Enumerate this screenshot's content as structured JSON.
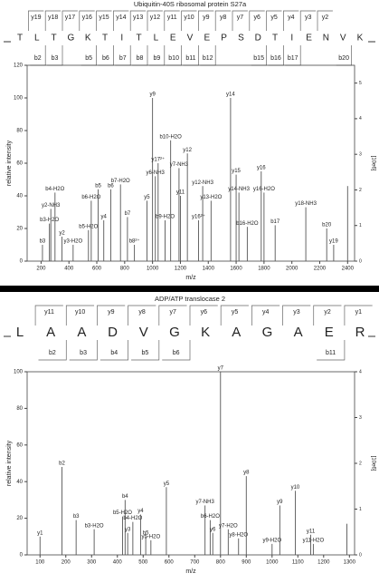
{
  "chart_data": [
    {
      "type": "spectrum",
      "title": "Ubiquitin-40S ribosomal protein S27a",
      "sequence": [
        "T",
        "L",
        "T",
        "G",
        "K",
        "T",
        "I",
        "T",
        "L",
        "E",
        "V",
        "E",
        "P",
        "S",
        "D",
        "T",
        "I",
        "E",
        "N",
        "V",
        "K"
      ],
      "y_ions": [
        "y19",
        "y18",
        "y17",
        "y16",
        "y15",
        "y14",
        "y13",
        "y12",
        "y11",
        "y10",
        "y9",
        "y8",
        "y7",
        "y6",
        "y5",
        "y4",
        "y3",
        "y2",
        null,
        null
      ],
      "b_ions": [
        null,
        "b2",
        "b3",
        null,
        "b5",
        "b6",
        "b7",
        "b8",
        "b9",
        "b10",
        "b11",
        "b12",
        null,
        null,
        "b15",
        "b16",
        "b17",
        null,
        null,
        "b20"
      ],
      "x_label": "m/z",
      "y_label": "relative intensity",
      "y2_label": "[10e6]",
      "xlim": [
        100,
        2450
      ],
      "xticks": [
        200,
        400,
        600,
        800,
        1000,
        1200,
        1400,
        1600,
        1800,
        2000,
        2200,
        2400
      ],
      "ylim": [
        0,
        120
      ],
      "yticks": [
        0,
        20,
        40,
        60,
        80,
        100,
        120
      ],
      "y2lim": [
        0,
        5.5
      ],
      "y2ticks": [
        0,
        1,
        2,
        3,
        4,
        5
      ],
      "color": "#555555",
      "peaks": {
        "x": [
          210,
          260,
          270,
          300,
          350,
          430,
          540,
          560,
          610,
          650,
          700,
          770,
          820,
          870,
          960,
          1000,
          1020,
          1040,
          1090,
          1130,
          1190,
          1200,
          1250,
          1330,
          1360,
          1420,
          1560,
          1600,
          1620,
          1680,
          1780,
          1800,
          1880,
          2100,
          2250,
          2300,
          2400
        ],
        "values": [
          10,
          23,
          32,
          42,
          15,
          10,
          19,
          37,
          44,
          25,
          44,
          47,
          27,
          10,
          37,
          100,
          52,
          60,
          25,
          74,
          57,
          40,
          66,
          25,
          46,
          37,
          100,
          53,
          42,
          21,
          55,
          42,
          22,
          33,
          20,
          10,
          46
        ],
        "labels": [
          "b3",
          "b3-H2O",
          "y2-NH3",
          "b4-H2O",
          "y2",
          "y3-H2O",
          "b5-H2O",
          "b6-H2O",
          "b5",
          "y4",
          "b6",
          "b7-H2O",
          "b7",
          "b8²⁺",
          "y5",
          "y9",
          "y6-NH3",
          "y17²⁺",
          "b9-H2O",
          "b10-H2O",
          "y7-NH3",
          "y11",
          "y12",
          "y16²⁺",
          "y12-NH3",
          "y13-H2O",
          "y14",
          "y15",
          "y14-NH3",
          "b16-H2O",
          "y16",
          "y16-H2O",
          "b17",
          "y18-NH3",
          "b20",
          "y19",
          null
        ]
      }
    },
    {
      "type": "spectrum",
      "title": "ADP/ATP translocase 2",
      "sequence": [
        "L",
        "A",
        "A",
        "D",
        "V",
        "G",
        "K",
        "A",
        "G",
        "A",
        "E",
        "R"
      ],
      "y_ions": [
        "y11",
        "y10",
        "y9",
        "y8",
        "y7",
        "y6",
        "y5",
        "y4",
        "y3",
        "y2",
        "y1"
      ],
      "b_ions": [
        null,
        "b2",
        "b3",
        "b4",
        "b5",
        "b6",
        null,
        null,
        null,
        null,
        "b11"
      ],
      "x_label": "m/z",
      "y_label": "relative intensity",
      "y2_label": "[10e6]",
      "xlim": [
        50,
        1320
      ],
      "xticks": [
        100,
        200,
        300,
        400,
        500,
        600,
        700,
        800,
        900,
        1000,
        1100,
        1200,
        1300
      ],
      "ylim": [
        0,
        100
      ],
      "yticks": [
        0,
        20,
        40,
        60,
        80,
        100
      ],
      "y2lim": [
        0,
        4
      ],
      "y2ticks": [
        0,
        1,
        2,
        3,
        4
      ],
      "color": "#555555",
      "peaks": {
        "x": [
          100,
          185,
          240,
          310,
          420,
          430,
          440,
          460,
          490,
          510,
          530,
          590,
          740,
          760,
          770,
          800,
          830,
          870,
          900,
          1000,
          1030,
          1090,
          1150,
          1160,
          1290
        ],
        "values": [
          10,
          48,
          19,
          14,
          21,
          30,
          12,
          18,
          22,
          10,
          8,
          37,
          27,
          19,
          12,
          100,
          14,
          9,
          43,
          6,
          27,
          35,
          11,
          6,
          17
        ],
        "labels": [
          "y1",
          "b2",
          "b3",
          "b3-H2O",
          "b5-H2O",
          "b4",
          "y3",
          "b4-H2O",
          "y4",
          "b5",
          "y5-H2O",
          "y5",
          "y7-NH3",
          "b6-H2O",
          "y6",
          "y7",
          "y7-H2O",
          "y8-H2O",
          "y8",
          "y9-H2O",
          "y9",
          "y10",
          "y11",
          "y11-H2O",
          null
        ]
      }
    }
  ]
}
